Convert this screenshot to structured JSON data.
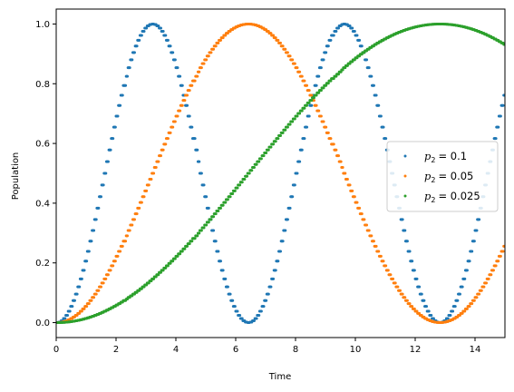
{
  "chart_data": {
    "type": "scatter",
    "title": "",
    "xlabel": "Time",
    "ylabel": "Population",
    "xlim": [
      0,
      15
    ],
    "ylim": [
      -0.05,
      1.05
    ],
    "x_ticks": [
      0,
      2,
      4,
      6,
      8,
      10,
      12,
      14
    ],
    "x_tick_labels": [
      "0",
      "2",
      "4",
      "6",
      "8",
      "10",
      "12",
      "14"
    ],
    "y_ticks": [
      0.0,
      0.2,
      0.4,
      0.6,
      0.8,
      1.0
    ],
    "y_tick_labels": [
      "0.0",
      "0.2",
      "0.4",
      "0.6",
      "0.8",
      "1.0"
    ],
    "grid": false,
    "legend_position": "center-right",
    "series": [
      {
        "name": "p2 = 0.1",
        "legend_symbol": "p",
        "legend_subscript": "2",
        "legend_value": "= 0.1",
        "color": "#1f77b4",
        "period": 6.4,
        "amplitude": 1.0,
        "x": [
          0.0,
          0.8,
          1.6,
          2.4,
          3.2,
          4.0,
          4.8,
          5.6,
          6.4,
          7.2,
          8.0,
          8.8,
          9.6,
          10.4,
          11.2,
          12.0,
          12.8,
          13.6,
          14.4,
          15.0
        ],
        "y": [
          0.0,
          0.15,
          0.5,
          0.85,
          1.0,
          0.85,
          0.5,
          0.15,
          0.0,
          0.15,
          0.5,
          0.85,
          1.0,
          0.85,
          0.5,
          0.15,
          0.0,
          0.15,
          0.5,
          0.76
        ]
      },
      {
        "name": "p2 = 0.05",
        "legend_symbol": "p",
        "legend_subscript": "2",
        "legend_value": "= 0.05",
        "color": "#ff7f0e",
        "period": 12.8,
        "amplitude": 1.0,
        "x": [
          0.0,
          1.6,
          3.2,
          4.8,
          6.4,
          8.0,
          9.6,
          11.2,
          12.8,
          14.4,
          15.0
        ],
        "y": [
          0.0,
          0.15,
          0.5,
          0.85,
          1.0,
          0.85,
          0.5,
          0.15,
          0.0,
          0.15,
          0.26
        ]
      },
      {
        "name": "p2 = 0.025",
        "legend_symbol": "p",
        "legend_subscript": "2",
        "legend_value": "= 0.025",
        "color": "#2ca02c",
        "period": 25.6,
        "amplitude": 1.0,
        "x": [
          0.0,
          3.2,
          6.4,
          9.6,
          12.8,
          15.0
        ],
        "y": [
          0.0,
          0.15,
          0.5,
          0.85,
          1.0,
          0.93
        ]
      }
    ]
  }
}
